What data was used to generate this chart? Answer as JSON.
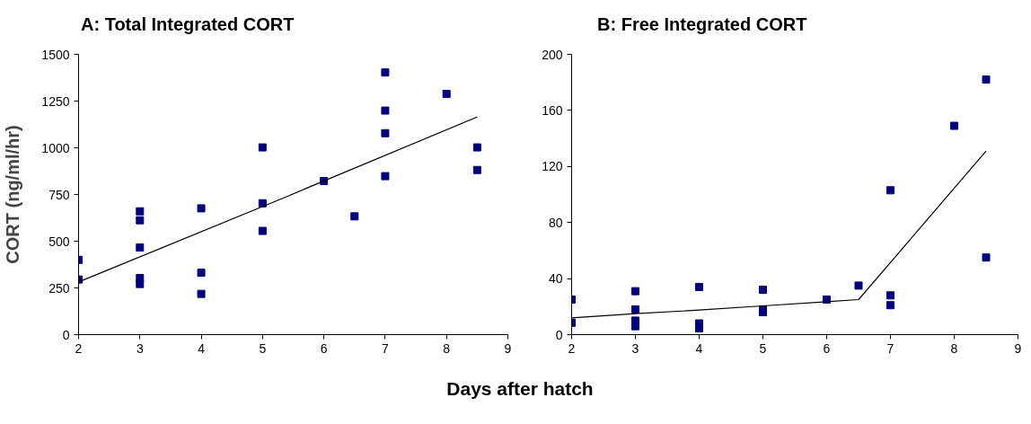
{
  "chart_data": [
    {
      "type": "scatter",
      "title": "A: Total Integrated CORT",
      "xlabel": "Days after hatch",
      "ylabel": "CORT (ng/ml/hr)",
      "xlim": [
        2,
        9
      ],
      "xticks": [
        2,
        3,
        4,
        5,
        6,
        7,
        8,
        9
      ],
      "ylim": [
        0,
        1500
      ],
      "yticks": [
        0,
        250,
        500,
        750,
        1000,
        1250,
        1500
      ],
      "grid": false,
      "series": [
        {
          "marker": "square",
          "color": "#000080",
          "x": [
            2,
            2,
            3,
            3,
            3,
            3,
            3,
            4,
            4,
            4,
            5,
            5,
            5,
            6,
            6.5,
            7,
            7,
            7,
            7,
            8,
            8.5,
            8.5
          ],
          "values": [
            400,
            295,
            660,
            612,
            466,
            303,
            271,
            676,
            331,
            218,
            1002,
            703,
            555,
            822,
            633,
            1403,
            1199,
            1078,
            848,
            1288,
            1002,
            881
          ]
        },
        {
          "type": "line",
          "color": "#000000",
          "x": [
            2,
            5.4,
            5.8,
            8.5
          ],
          "values": [
            282,
            739,
            795,
            1165
          ]
        }
      ]
    },
    {
      "type": "scatter",
      "title": "B:  Free Integrated CORT",
      "xlim": [
        2,
        9
      ],
      "xticks": [
        2,
        3,
        4,
        5,
        6,
        7,
        8,
        9
      ],
      "ylim": [
        0,
        200
      ],
      "yticks": [
        0,
        40,
        80,
        120,
        160,
        200
      ],
      "grid": false,
      "series": [
        {
          "marker": "square",
          "color": "#000080",
          "x": [
            2,
            2,
            3,
            3,
            3,
            3,
            4,
            4,
            4,
            5,
            5,
            5,
            6,
            6.5,
            7,
            7,
            7,
            8,
            8.5,
            8.5
          ],
          "values": [
            25,
            8.5,
            31,
            18,
            10,
            6,
            34,
            8,
            4.5,
            32,
            18,
            16,
            25,
            35,
            103,
            28,
            21,
            149,
            182,
            55
          ]
        },
        {
          "type": "line",
          "color": "#000000",
          "x": [
            2,
            3,
            4,
            5,
            6,
            6.5,
            8.5
          ],
          "values": [
            12,
            15,
            17.5,
            20.5,
            23.5,
            25,
            131
          ]
        }
      ]
    }
  ]
}
